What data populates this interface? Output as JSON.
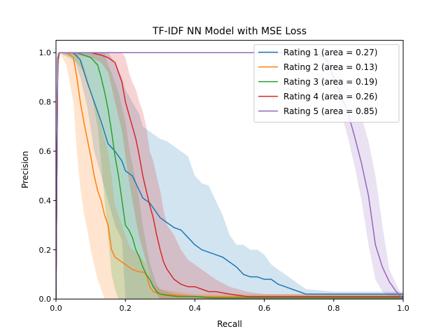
{
  "chart_data": {
    "type": "line",
    "title": "TF-IDF NN Model with MSE Loss",
    "xlabel": "Recall",
    "ylabel": "Precision",
    "xlim": [
      0.0,
      1.0
    ],
    "ylim": [
      0.0,
      1.05
    ],
    "xticks": [
      "0.0",
      "0.2",
      "0.4",
      "0.6",
      "0.8",
      "1.0"
    ],
    "yticks": [
      "0.0",
      "0.2",
      "0.4",
      "0.6",
      "0.8",
      "1.0"
    ],
    "grid": false,
    "legend_position": "upper right",
    "series": [
      {
        "name": "Rating 1 (area = 0.27)",
        "color": "#1f77b4",
        "x": [
          0.0,
          0.005,
          0.01,
          0.05,
          0.07,
          0.09,
          0.11,
          0.13,
          0.15,
          0.17,
          0.19,
          0.2,
          0.22,
          0.24,
          0.25,
          0.27,
          0.29,
          0.3,
          0.32,
          0.34,
          0.36,
          0.38,
          0.4,
          0.42,
          0.44,
          0.46,
          0.48,
          0.5,
          0.52,
          0.54,
          0.56,
          0.58,
          0.6,
          0.62,
          0.64,
          0.66,
          0.68,
          0.7,
          0.72,
          0.8,
          0.9,
          1.0
        ],
        "y": [
          0.0,
          0.98,
          1.0,
          1.0,
          0.97,
          0.88,
          0.8,
          0.72,
          0.63,
          0.6,
          0.56,
          0.52,
          0.5,
          0.44,
          0.41,
          0.39,
          0.35,
          0.33,
          0.31,
          0.29,
          0.28,
          0.25,
          0.22,
          0.2,
          0.19,
          0.18,
          0.17,
          0.15,
          0.13,
          0.1,
          0.09,
          0.09,
          0.08,
          0.08,
          0.06,
          0.05,
          0.04,
          0.03,
          0.02,
          0.02,
          0.02,
          0.02
        ],
        "band_upper": [
          0.0,
          1.0,
          1.0,
          1.0,
          1.0,
          1.0,
          1.0,
          1.0,
          1.0,
          0.96,
          0.9,
          0.85,
          0.8,
          0.75,
          0.7,
          0.68,
          0.66,
          0.65,
          0.64,
          0.62,
          0.6,
          0.58,
          0.5,
          0.47,
          0.46,
          0.4,
          0.34,
          0.26,
          0.22,
          0.22,
          0.2,
          0.2,
          0.18,
          0.14,
          0.12,
          0.1,
          0.08,
          0.06,
          0.04,
          0.03,
          0.03,
          0.03
        ],
        "band_lower": [
          0.0,
          0.8,
          1.0,
          0.98,
          0.9,
          0.78,
          0.6,
          0.5,
          0.4,
          0.3,
          0.24,
          0.0,
          0.0,
          0.0,
          0.0,
          0.0,
          0.0,
          0.0,
          0.0,
          0.0,
          0.0,
          0.0,
          0.0,
          0.0,
          0.0,
          0.0,
          0.0,
          0.0,
          0.0,
          0.0,
          0.0,
          0.0,
          0.0,
          0.0,
          0.0,
          0.0,
          0.0,
          0.0,
          0.0,
          0.0,
          0.0,
          0.0
        ]
      },
      {
        "name": "Rating 2 (area = 0.13)",
        "color": "#ff7f0e",
        "x": [
          0.0,
          0.005,
          0.01,
          0.03,
          0.05,
          0.06,
          0.07,
          0.08,
          0.09,
          0.1,
          0.11,
          0.12,
          0.13,
          0.14,
          0.15,
          0.16,
          0.17,
          0.19,
          0.21,
          0.22,
          0.24,
          0.25,
          0.26,
          0.27,
          0.28,
          0.3,
          0.35,
          0.4,
          0.5,
          0.6,
          0.7,
          0.8,
          0.9,
          1.0
        ],
        "y": [
          0.0,
          0.95,
          1.0,
          1.0,
          0.98,
          0.9,
          0.8,
          0.72,
          0.65,
          0.58,
          0.5,
          0.44,
          0.4,
          0.34,
          0.3,
          0.2,
          0.17,
          0.15,
          0.13,
          0.12,
          0.11,
          0.11,
          0.1,
          0.05,
          0.03,
          0.02,
          0.015,
          0.01,
          0.01,
          0.01,
          0.01,
          0.01,
          0.01,
          0.01
        ],
        "band_upper": [
          0.0,
          1.0,
          1.0,
          1.0,
          1.0,
          1.0,
          0.98,
          0.95,
          0.9,
          0.85,
          0.8,
          0.75,
          0.7,
          0.65,
          0.6,
          0.5,
          0.38,
          0.3,
          0.22,
          0.2,
          0.18,
          0.16,
          0.14,
          0.1,
          0.06,
          0.04,
          0.03,
          0.02,
          0.02,
          0.02,
          0.02,
          0.02,
          0.02,
          0.02
        ],
        "band_lower": [
          0.0,
          0.85,
          1.0,
          0.95,
          0.8,
          0.6,
          0.45,
          0.35,
          0.28,
          0.2,
          0.14,
          0.08,
          0.04,
          0.0,
          0.0,
          0.0,
          0.0,
          0.0,
          0.0,
          0.0,
          0.0,
          0.0,
          0.0,
          0.0,
          0.0,
          0.0,
          0.0,
          0.0,
          0.0,
          0.0,
          0.0,
          0.0,
          0.0,
          0.0
        ]
      },
      {
        "name": "Rating 3 (area = 0.19)",
        "color": "#2ca02c",
        "x": [
          0.0,
          0.005,
          0.01,
          0.06,
          0.08,
          0.1,
          0.12,
          0.13,
          0.14,
          0.15,
          0.16,
          0.17,
          0.18,
          0.19,
          0.2,
          0.21,
          0.22,
          0.23,
          0.24,
          0.25,
          0.26,
          0.27,
          0.28,
          0.29,
          0.3,
          0.32,
          0.35,
          0.4,
          0.45,
          0.5,
          0.6,
          0.7,
          0.8,
          0.9,
          1.0
        ],
        "y": [
          0.0,
          0.97,
          1.0,
          1.0,
          0.99,
          0.98,
          0.95,
          0.9,
          0.84,
          0.77,
          0.68,
          0.58,
          0.5,
          0.4,
          0.3,
          0.28,
          0.25,
          0.2,
          0.17,
          0.13,
          0.1,
          0.08,
          0.05,
          0.03,
          0.02,
          0.015,
          0.01,
          0.01,
          0.005,
          0.005,
          0.005,
          0.005,
          0.005,
          0.005,
          0.005
        ],
        "band_upper": [
          0.0,
          1.0,
          1.0,
          1.0,
          1.0,
          1.0,
          1.0,
          1.0,
          1.0,
          0.95,
          0.92,
          0.88,
          0.84,
          0.78,
          0.72,
          0.62,
          0.55,
          0.48,
          0.4,
          0.3,
          0.22,
          0.15,
          0.1,
          0.06,
          0.04,
          0.03,
          0.02,
          0.015,
          0.01,
          0.01,
          0.01,
          0.01,
          0.01,
          0.01,
          0.01
        ],
        "band_lower": [
          0.0,
          0.9,
          1.0,
          0.96,
          0.92,
          0.85,
          0.7,
          0.55,
          0.4,
          0.25,
          0.1,
          0.04,
          0.0,
          0.0,
          0.0,
          0.0,
          0.0,
          0.0,
          0.0,
          0.0,
          0.0,
          0.0,
          0.0,
          0.0,
          0.0,
          0.0,
          0.0,
          0.0,
          0.0,
          0.0,
          0.0,
          0.0,
          0.0,
          0.0,
          0.0
        ]
      },
      {
        "name": "Rating 4 (area = 0.26)",
        "color": "#d62728",
        "x": [
          0.0,
          0.005,
          0.01,
          0.1,
          0.13,
          0.15,
          0.17,
          0.19,
          0.2,
          0.21,
          0.22,
          0.23,
          0.24,
          0.25,
          0.26,
          0.27,
          0.28,
          0.29,
          0.3,
          0.31,
          0.32,
          0.34,
          0.36,
          0.38,
          0.4,
          0.42,
          0.44,
          0.46,
          0.5,
          0.55,
          0.6,
          0.7,
          0.8,
          0.9,
          1.0
        ],
        "y": [
          0.0,
          0.97,
          1.0,
          1.0,
          0.99,
          0.98,
          0.96,
          0.88,
          0.8,
          0.75,
          0.7,
          0.65,
          0.58,
          0.5,
          0.44,
          0.38,
          0.33,
          0.26,
          0.2,
          0.15,
          0.12,
          0.08,
          0.06,
          0.05,
          0.05,
          0.04,
          0.03,
          0.03,
          0.02,
          0.01,
          0.01,
          0.01,
          0.01,
          0.01,
          0.01
        ],
        "band_upper": [
          0.0,
          1.0,
          1.0,
          1.0,
          1.0,
          1.0,
          1.0,
          1.0,
          0.98,
          0.92,
          0.88,
          0.85,
          0.8,
          0.76,
          0.7,
          0.6,
          0.56,
          0.5,
          0.44,
          0.36,
          0.3,
          0.26,
          0.2,
          0.16,
          0.14,
          0.12,
          0.1,
          0.08,
          0.05,
          0.03,
          0.02,
          0.02,
          0.02,
          0.02,
          0.02
        ],
        "band_lower": [
          0.0,
          0.9,
          1.0,
          0.98,
          0.96,
          0.92,
          0.8,
          0.68,
          0.58,
          0.48,
          0.4,
          0.32,
          0.25,
          0.2,
          0.15,
          0.1,
          0.05,
          0.02,
          0.0,
          0.0,
          0.0,
          0.0,
          0.0,
          0.0,
          0.0,
          0.0,
          0.0,
          0.0,
          0.0,
          0.0,
          0.0,
          0.0,
          0.0,
          0.0,
          0.0
        ]
      },
      {
        "name": "Rating 5 (area = 0.85)",
        "color": "#9467bd",
        "x": [
          0.0,
          0.005,
          0.01,
          0.6,
          0.75,
          0.78,
          0.8,
          0.82,
          0.84,
          0.86,
          0.88,
          0.9,
          0.92,
          0.94,
          0.96,
          0.98,
          1.0
        ],
        "y": [
          0.0,
          0.98,
          1.0,
          1.0,
          1.0,
          0.97,
          0.9,
          0.83,
          0.76,
          0.66,
          0.55,
          0.42,
          0.22,
          0.13,
          0.07,
          0.03,
          0.0
        ],
        "band_upper": [
          0.0,
          1.0,
          1.0,
          1.0,
          1.0,
          1.0,
          0.96,
          0.92,
          0.86,
          0.8,
          0.74,
          0.64,
          0.5,
          0.3,
          0.12,
          0.06,
          0.0
        ],
        "band_lower": [
          0.0,
          0.95,
          1.0,
          1.0,
          0.99,
          0.92,
          0.84,
          0.76,
          0.66,
          0.54,
          0.4,
          0.22,
          0.08,
          0.03,
          0.01,
          0.005,
          0.0
        ]
      }
    ]
  }
}
